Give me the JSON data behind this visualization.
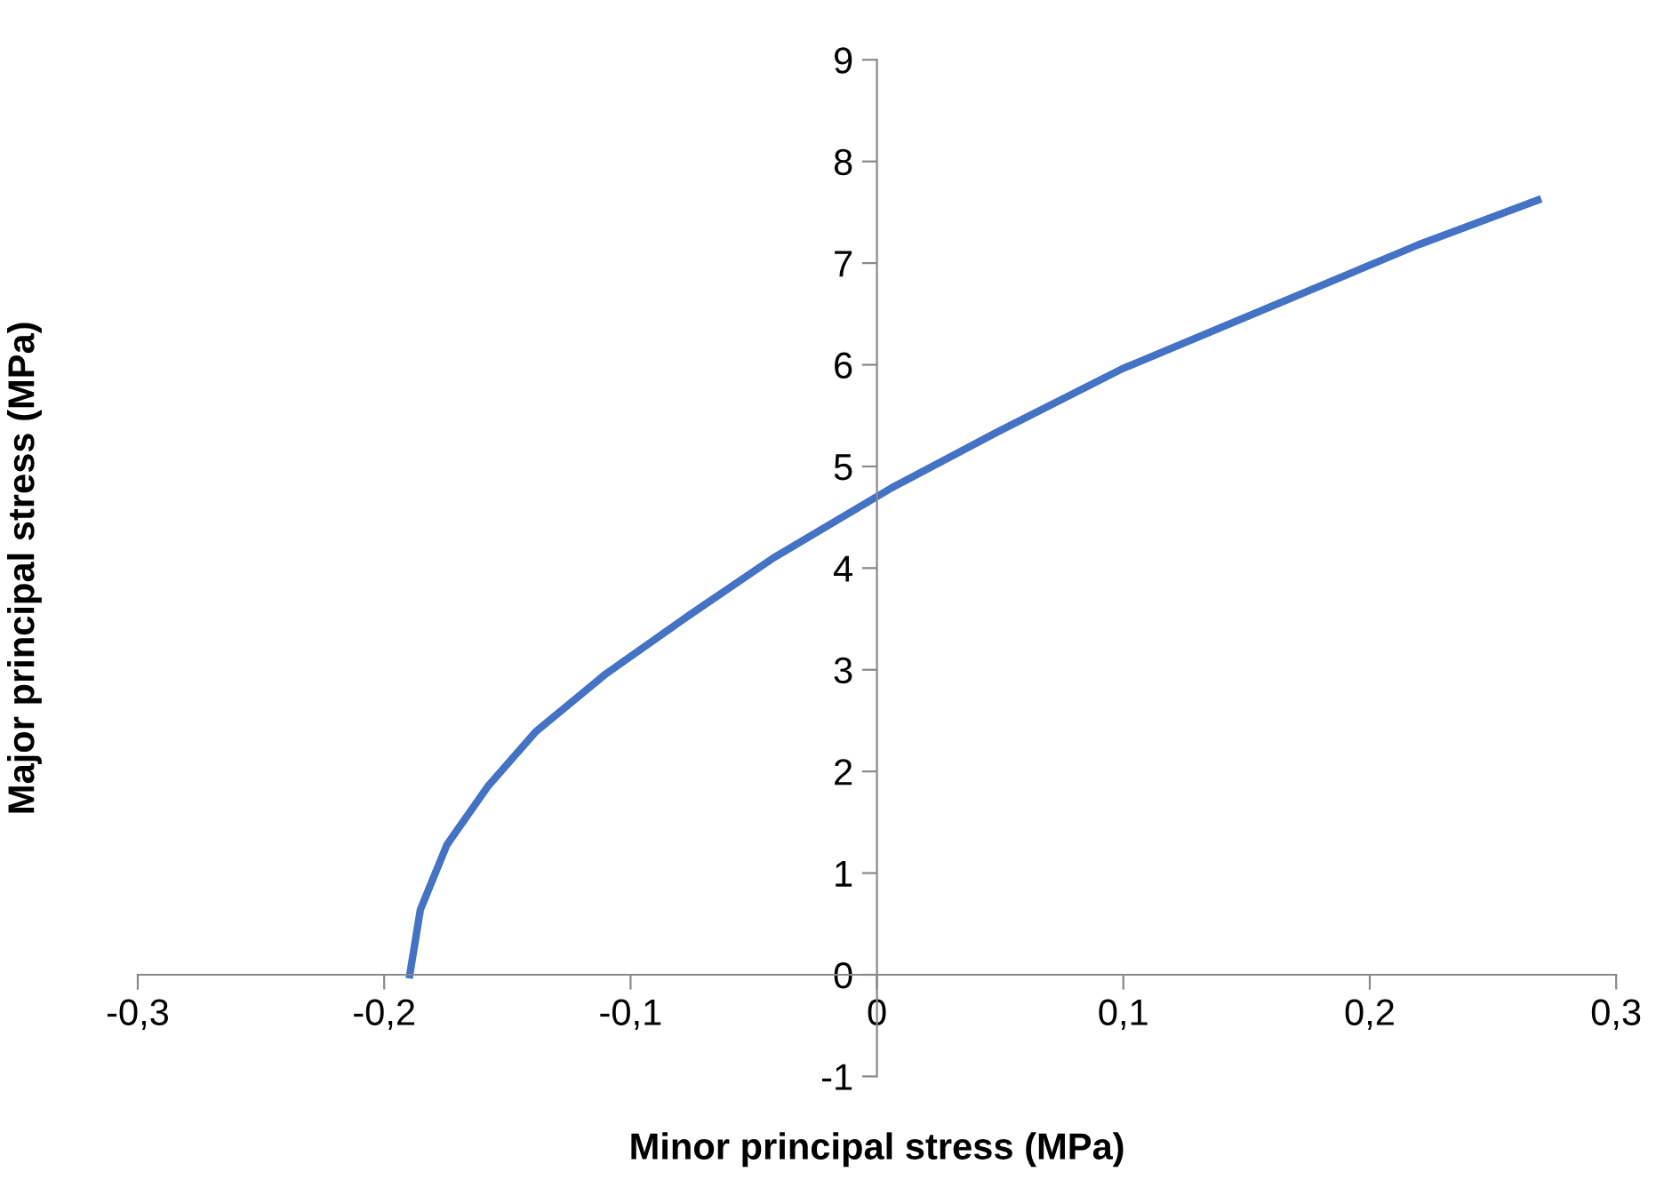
{
  "chart_data": {
    "type": "line",
    "xlabel": "Minor principal stress (MPa)",
    "ylabel": "Major principal stress (MPa)",
    "series": [
      {
        "color": "#4472c4",
        "x": [
          -0.1896,
          -0.1853,
          -0.1745,
          -0.158,
          -0.1385,
          -0.11,
          -0.076,
          -0.042,
          0.006,
          0.049,
          0.0995,
          0.1596,
          0.2197,
          0.2682
        ],
        "values": [
          0,
          0.64,
          1.28,
          1.85,
          2.39,
          2.96,
          3.54,
          4.1,
          4.79,
          5.34,
          5.96,
          6.57,
          7.18,
          7.62
        ]
      }
    ],
    "xlim": [
      -0.3,
      0.3
    ],
    "ylim": [
      -1,
      9
    ],
    "xticks": [
      {
        "value": -0.3,
        "label": "-0,3"
      },
      {
        "value": -0.2,
        "label": "-0,2"
      },
      {
        "value": -0.1,
        "label": "-0,1"
      },
      {
        "value": 0,
        "label": "0"
      },
      {
        "value": 0.1,
        "label": "0,1"
      },
      {
        "value": 0.2,
        "label": "0,2"
      },
      {
        "value": 0.3,
        "label": "0,3"
      }
    ],
    "yticks": [
      -1,
      0,
      1,
      2,
      3,
      4,
      5,
      6,
      7,
      8,
      9
    ],
    "grid": false,
    "marker": "none",
    "line_style": "solid"
  }
}
